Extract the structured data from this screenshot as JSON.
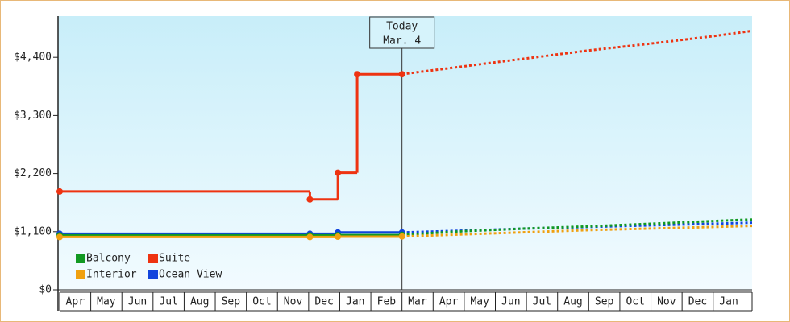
{
  "chart_data": {
    "type": "line",
    "categories": [
      "Apr",
      "May",
      "Jun",
      "Jul",
      "Aug",
      "Sep",
      "Oct",
      "Nov",
      "Dec",
      "Jan",
      "Feb",
      "Mar",
      "Apr",
      "May",
      "Jun",
      "Jul",
      "Aug",
      "Sep",
      "Oct",
      "Nov",
      "Dec",
      "Jan"
    ],
    "xlim": [
      0,
      22.25
    ],
    "ylim": [
      0,
      5180
    ],
    "yticks": [
      {
        "value": 0,
        "label": "$0"
      },
      {
        "value": 1100,
        "label": "$1,100"
      },
      {
        "value": 2200,
        "label": "$2,200"
      },
      {
        "value": 3300,
        "label": "$3,300"
      },
      {
        "value": 4400,
        "label": "$4,400"
      }
    ],
    "annotation": {
      "x": 11,
      "lines": [
        "Today",
        "Mar. 4"
      ]
    },
    "legend": "bottom-left",
    "series": [
      {
        "name": "Balcony",
        "color": "#119922",
        "x": [
          0,
          8.04,
          8.94,
          11
        ],
        "values": [
          1030,
          1030,
          1035,
          1040
        ],
        "forecast_x": [
          11,
          13,
          15,
          17,
          19,
          21,
          22.25
        ],
        "forecast_values": [
          1040,
          1110,
          1160,
          1200,
          1250,
          1300,
          1330
        ]
      },
      {
        "name": "Suite",
        "color": "#ee3311",
        "x": [
          0,
          8.04,
          8.94,
          9.56,
          11
        ],
        "values": [
          1860,
          1710,
          2215,
          4080,
          4080
        ],
        "forecast_x": [
          11,
          13,
          15,
          17,
          19,
          21,
          22.25
        ],
        "forecast_values": [
          4080,
          4230,
          4380,
          4530,
          4660,
          4800,
          4900
        ]
      },
      {
        "name": "Interior",
        "color": "#f0a010",
        "x": [
          0,
          8.04,
          8.94,
          11
        ],
        "values": [
          1000,
          1000,
          1005,
          1010
        ],
        "forecast_x": [
          11,
          13,
          15,
          17,
          19,
          21,
          22.25
        ],
        "forecast_values": [
          1010,
          1050,
          1090,
          1130,
          1160,
          1190,
          1210
        ]
      },
      {
        "name": "Ocean View",
        "color": "#1144dd",
        "x": [
          0,
          8.04,
          8.94,
          11
        ],
        "values": [
          1060,
          1060,
          1085,
          1085
        ],
        "forecast_x": [
          11,
          13,
          15,
          17,
          19,
          21,
          22.25
        ],
        "forecast_values": [
          1085,
          1120,
          1160,
          1190,
          1220,
          1250,
          1270
        ]
      }
    ]
  }
}
